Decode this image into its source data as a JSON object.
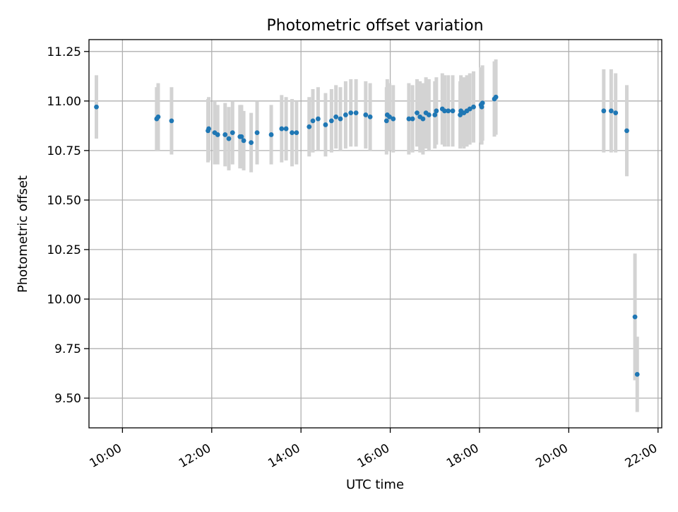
{
  "chart_data": {
    "type": "scatter",
    "title": "Photometric offset variation",
    "xlabel": "UTC time",
    "ylabel": "Photometric offset",
    "x_ticks": [
      "10:00",
      "12:00",
      "14:00",
      "16:00",
      "18:00",
      "20:00",
      "22:00"
    ],
    "y_ticks": [
      "9.50",
      "9.75",
      "10.00",
      "10.25",
      "10.50",
      "10.75",
      "11.00",
      "11.25"
    ],
    "xlim": [
      "09:15",
      "22:05"
    ],
    "ylim": [
      9.35,
      11.31
    ],
    "grid": true,
    "colors": {
      "point": "#1f77b4",
      "errorbar": "#d3d3d3",
      "grid": "#b0b0b0"
    },
    "series": [
      {
        "x": [
          "09:25",
          "10:46",
          "10:48",
          "11:06",
          "11:55",
          "11:56",
          "12:04",
          "12:08",
          "12:18",
          "12:23",
          "12:28",
          "12:38",
          "12:40",
          "12:43",
          "12:53",
          "13:01",
          "13:20",
          "13:34",
          "13:40",
          "13:48",
          "13:54",
          "14:11",
          "14:16",
          "14:23",
          "14:33",
          "14:41",
          "14:47",
          "14:53",
          "15:00",
          "15:07",
          "15:14",
          "15:27",
          "15:33",
          "15:55",
          "15:56",
          "15:59",
          "16:04",
          "16:25",
          "16:30",
          "16:36",
          "16:40",
          "16:44",
          "16:48",
          "16:52",
          "17:00",
          "17:02",
          "17:10",
          "17:13",
          "17:18",
          "17:24",
          "17:34",
          "17:35",
          "17:39",
          "17:43",
          "17:47",
          "17:52",
          "18:02",
          "18:03",
          "18:04",
          "18:20",
          "18:22",
          "20:47",
          "20:57",
          "21:03",
          "21:18",
          "21:29",
          "21:32"
        ],
        "y": [
          10.97,
          10.91,
          10.92,
          10.9,
          10.85,
          10.86,
          10.84,
          10.83,
          10.83,
          10.81,
          10.84,
          10.82,
          10.82,
          10.8,
          10.79,
          10.84,
          10.83,
          10.86,
          10.86,
          10.84,
          10.84,
          10.87,
          10.9,
          10.91,
          10.88,
          10.9,
          10.92,
          10.91,
          10.93,
          10.94,
          10.94,
          10.93,
          10.92,
          10.9,
          10.93,
          10.92,
          10.91,
          10.91,
          10.91,
          10.94,
          10.92,
          10.91,
          10.94,
          10.93,
          10.93,
          10.95,
          10.96,
          10.95,
          10.95,
          10.95,
          10.93,
          10.95,
          10.94,
          10.95,
          10.96,
          10.97,
          10.98,
          10.97,
          10.99,
          11.01,
          11.02,
          10.95,
          10.95,
          10.94,
          10.85,
          9.91,
          9.62
        ],
        "yerr": [
          0.16,
          0.16,
          0.17,
          0.17,
          0.16,
          0.16,
          0.16,
          0.15,
          0.16,
          0.16,
          0.16,
          0.16,
          0.16,
          0.15,
          0.15,
          0.16,
          0.15,
          0.17,
          0.16,
          0.17,
          0.16,
          0.15,
          0.16,
          0.16,
          0.16,
          0.16,
          0.16,
          0.16,
          0.17,
          0.17,
          0.17,
          0.17,
          0.17,
          0.17,
          0.18,
          0.17,
          0.17,
          0.18,
          0.17,
          0.17,
          0.18,
          0.18,
          0.18,
          0.18,
          0.17,
          0.17,
          0.18,
          0.18,
          0.18,
          0.18,
          0.17,
          0.18,
          0.18,
          0.18,
          0.18,
          0.18,
          0.19,
          0.19,
          0.19,
          0.19,
          0.19,
          0.21,
          0.21,
          0.2,
          0.23,
          0.32,
          0.19
        ]
      }
    ]
  }
}
